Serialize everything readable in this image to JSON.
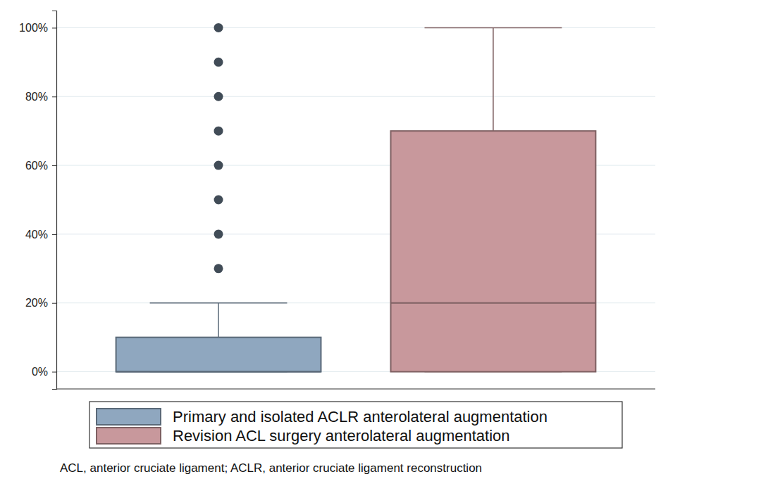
{
  "chart_data": {
    "type": "box",
    "ylim": [
      -5,
      105
    ],
    "yticks": [
      {
        "value": 0,
        "label": "0%"
      },
      {
        "value": 20,
        "label": "20%"
      },
      {
        "value": 40,
        "label": "40%"
      },
      {
        "value": 60,
        "label": "60%"
      },
      {
        "value": 80,
        "label": "80%"
      },
      {
        "value": 100,
        "label": "100%"
      }
    ],
    "grid": true,
    "legend": "bottom",
    "series": [
      {
        "name": "Primary and isolated ACLR anterolateral augmentation",
        "color": "#8fa7bf",
        "whisker_low": 0,
        "q1": 0,
        "median": 0,
        "q3": 10,
        "whisker_high": 20,
        "outliers": [
          30,
          40,
          50,
          60,
          70,
          80,
          90,
          100
        ]
      },
      {
        "name": "Revision ACL surgery anterolateral augmentation",
        "color": "#c8989c",
        "whisker_low": 0,
        "q1": 0,
        "median": 20,
        "q3": 70,
        "whisker_high": 100,
        "outliers": []
      }
    ],
    "footnote": "ACL, anterior cruciate ligament; ACLR, anterior cruciate ligament reconstruction"
  }
}
